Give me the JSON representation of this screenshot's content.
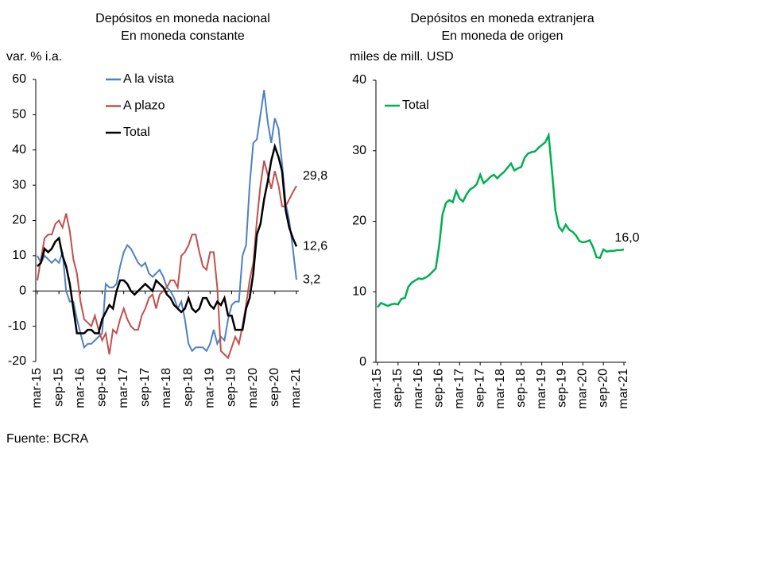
{
  "chart_data": [
    {
      "type": "line",
      "title": "Depósitos en moneda nacional",
      "subtitle": "En moneda constante",
      "y_label": "var. % i.a.",
      "categories": [
        "mar-15",
        null,
        null,
        null,
        null,
        null,
        "sep-15",
        null,
        null,
        null,
        null,
        null,
        "mar-16",
        null,
        null,
        null,
        null,
        null,
        "sep-16",
        null,
        null,
        null,
        null,
        null,
        "mar-17",
        null,
        null,
        null,
        null,
        null,
        "sep-17",
        null,
        null,
        null,
        null,
        null,
        "mar-18",
        null,
        null,
        null,
        null,
        null,
        "sep-18",
        null,
        null,
        null,
        null,
        null,
        "mar-19",
        null,
        null,
        null,
        null,
        null,
        "sep-19",
        null,
        null,
        null,
        null,
        null,
        "mar-20",
        null,
        null,
        null,
        null,
        null,
        "sep-20",
        null,
        null,
        null,
        null,
        null,
        "mar-21"
      ],
      "ylim": [
        -20,
        60
      ],
      "yticks": [
        -20,
        -10,
        0,
        10,
        20,
        30,
        40,
        50,
        60
      ],
      "legend": "top-left",
      "series": [
        {
          "name": "A la vista",
          "color": "#4f81bd",
          "values": [
            10,
            8,
            10,
            9,
            8,
            9,
            8,
            11,
            0,
            -3,
            -3,
            -8,
            -12,
            -16,
            -15,
            -15,
            -14,
            -13,
            -12,
            2,
            1,
            1,
            2,
            7,
            11,
            13,
            12,
            10,
            8,
            7,
            8,
            5,
            4,
            5,
            6,
            4,
            1,
            0,
            -2,
            -5,
            -3,
            -8,
            -15,
            -17,
            -16,
            -16,
            -16,
            -17,
            -15,
            -11,
            -15,
            -13,
            -14,
            -8,
            -4,
            -3,
            -3,
            10,
            13,
            30,
            42,
            43,
            50,
            57,
            48,
            42,
            49,
            46,
            36,
            25,
            20,
            12,
            3.2
          ],
          "value_labels": [
            null,
            null,
            null,
            null,
            null,
            null,
            null,
            null,
            null,
            null,
            null,
            null,
            null,
            null,
            null,
            null,
            null,
            null,
            null,
            null,
            null,
            null,
            null,
            null,
            null,
            null,
            null,
            null,
            null,
            null,
            null,
            null,
            null,
            null,
            null,
            null,
            null,
            null,
            null,
            null,
            null,
            null,
            null,
            null,
            null,
            null,
            null,
            null,
            null,
            null,
            null,
            null,
            null,
            null,
            null,
            null,
            null,
            null,
            null,
            null,
            null,
            null,
            null,
            null,
            null,
            null,
            null,
            null,
            null,
            null,
            null,
            null,
            "3,2"
          ]
        },
        {
          "name": "A plazo",
          "color": "#c0504d",
          "values": [
            3,
            9,
            15,
            16,
            16,
            19,
            20,
            18,
            22,
            17,
            9,
            5,
            -3,
            -8,
            -9,
            -10,
            -7,
            -11,
            -14,
            -12,
            -18,
            -11,
            -12,
            -8,
            -5,
            -8,
            -10,
            -11,
            -11,
            -7,
            -5,
            -2,
            -1,
            -5,
            -1,
            0,
            1,
            3,
            3,
            1,
            10,
            11,
            13,
            16,
            16,
            11,
            7,
            6,
            11,
            11,
            1,
            -17,
            -18,
            -19,
            -16,
            -13,
            -15,
            -10,
            -4,
            3,
            8,
            20,
            30,
            37,
            33,
            29,
            34,
            30,
            24,
            24,
            26,
            28,
            29.8
          ],
          "value_labels": [
            null,
            null,
            null,
            null,
            null,
            null,
            null,
            null,
            null,
            null,
            null,
            null,
            null,
            null,
            null,
            null,
            null,
            null,
            null,
            null,
            null,
            null,
            null,
            null,
            null,
            null,
            null,
            null,
            null,
            null,
            null,
            null,
            null,
            null,
            null,
            null,
            null,
            null,
            null,
            null,
            null,
            null,
            null,
            null,
            null,
            null,
            null,
            null,
            null,
            null,
            null,
            null,
            null,
            null,
            null,
            null,
            null,
            null,
            null,
            null,
            null,
            null,
            null,
            null,
            null,
            null,
            null,
            null,
            null,
            null,
            null,
            null,
            "29,8"
          ]
        },
        {
          "name": "Total",
          "color": "#000000",
          "values": [
            7,
            8,
            12,
            11,
            12,
            14,
            15,
            10,
            7,
            2,
            -5,
            -12,
            -12,
            -12,
            -11,
            -11,
            -12,
            -12,
            -8,
            -6,
            -4,
            -5,
            0,
            3,
            3,
            2,
            0,
            -1,
            0,
            1,
            2,
            1,
            0,
            3,
            2,
            1,
            -1,
            -2,
            -4,
            -5,
            -6,
            -5,
            -2,
            -5,
            -6,
            -5,
            -2,
            -2,
            -4,
            -5,
            -3,
            -4,
            -2,
            -7,
            -7,
            -11,
            -11,
            -11,
            -5,
            -2,
            5,
            16,
            19,
            26,
            31,
            37,
            41,
            38,
            34,
            23,
            18,
            15,
            12.6
          ],
          "value_labels": [
            null,
            null,
            null,
            null,
            null,
            null,
            null,
            null,
            null,
            null,
            null,
            null,
            null,
            null,
            null,
            null,
            null,
            null,
            null,
            null,
            null,
            null,
            null,
            null,
            null,
            null,
            null,
            null,
            null,
            null,
            null,
            null,
            null,
            null,
            null,
            null,
            null,
            null,
            null,
            null,
            null,
            null,
            null,
            null,
            null,
            null,
            null,
            null,
            null,
            null,
            null,
            null,
            null,
            null,
            null,
            null,
            null,
            null,
            null,
            null,
            null,
            null,
            null,
            null,
            null,
            null,
            null,
            null,
            null,
            null,
            null,
            null,
            "12,6"
          ]
        }
      ]
    },
    {
      "type": "line",
      "title": "Depósitos en moneda extranjera",
      "subtitle": "En moneda de origen",
      "y_label": "miles de mill. USD",
      "categories": [
        "mar-15",
        null,
        null,
        null,
        null,
        null,
        "sep-15",
        null,
        null,
        null,
        null,
        null,
        "mar-16",
        null,
        null,
        null,
        null,
        null,
        "sep-16",
        null,
        null,
        null,
        null,
        null,
        "mar-17",
        null,
        null,
        null,
        null,
        null,
        "sep-17",
        null,
        null,
        null,
        null,
        null,
        "mar-18",
        null,
        null,
        null,
        null,
        null,
        "sep-18",
        null,
        null,
        null,
        null,
        null,
        "mar-19",
        null,
        null,
        null,
        null,
        null,
        "sep-19",
        null,
        null,
        null,
        null,
        null,
        "mar-20",
        null,
        null,
        null,
        null,
        null,
        "sep-20",
        null,
        null,
        null,
        null,
        null,
        "mar-21"
      ],
      "ylim": [
        0,
        40
      ],
      "yticks": [
        0,
        10,
        20,
        30,
        40
      ],
      "legend": "top-left",
      "series": [
        {
          "name": "Total",
          "color": "#00b050",
          "values": [
            7.8,
            8.4,
            8.2,
            8.0,
            8.2,
            8.3,
            8.2,
            9.0,
            9.1,
            10.7,
            11.3,
            11.6,
            11.9,
            11.8,
            12.0,
            12.3,
            12.8,
            13.3,
            16.5,
            21.0,
            22.6,
            23.0,
            22.7,
            24.3,
            23.2,
            22.8,
            23.8,
            24.5,
            24.8,
            25.3,
            26.6,
            25.4,
            25.8,
            26.3,
            26.6,
            26.1,
            26.6,
            27.0,
            27.6,
            28.2,
            27.2,
            27.5,
            27.7,
            29.0,
            29.6,
            29.8,
            29.9,
            30.4,
            30.8,
            31.2,
            32.2,
            27.0,
            21.5,
            19.2,
            18.6,
            19.5,
            18.8,
            18.5,
            18.0,
            17.2,
            17.0,
            17.1,
            17.3,
            16.3,
            14.9,
            14.8,
            16.0,
            15.7,
            15.8,
            15.8,
            15.9,
            15.9,
            16.0
          ],
          "value_labels": [
            null,
            null,
            null,
            null,
            null,
            null,
            null,
            null,
            null,
            null,
            null,
            null,
            null,
            null,
            null,
            null,
            null,
            null,
            null,
            null,
            null,
            null,
            null,
            null,
            null,
            null,
            null,
            null,
            null,
            null,
            null,
            null,
            null,
            null,
            null,
            null,
            null,
            null,
            null,
            null,
            null,
            null,
            null,
            null,
            null,
            null,
            null,
            null,
            null,
            null,
            null,
            null,
            null,
            null,
            null,
            null,
            null,
            null,
            null,
            null,
            null,
            null,
            null,
            null,
            null,
            null,
            null,
            null,
            null,
            null,
            null,
            null,
            "16,0"
          ]
        }
      ]
    }
  ],
  "source": "Fuente: BCRA"
}
